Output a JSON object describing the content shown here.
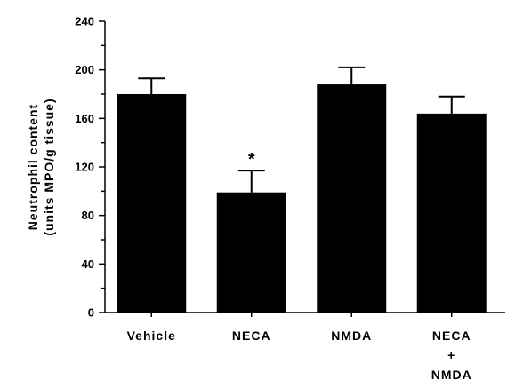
{
  "chart_data": {
    "type": "bar",
    "categories": [
      [
        "Vehicle"
      ],
      [
        "NECA"
      ],
      [
        "NMDA"
      ],
      [
        "NECA",
        "+",
        "NMDA"
      ]
    ],
    "values": [
      180,
      99,
      188,
      164
    ],
    "errors": [
      13,
      18,
      14,
      14
    ],
    "annotations": [
      "",
      "*",
      "",
      ""
    ],
    "ylabel": [
      "Neutrophil  content",
      "(units  MPO/g  tissue)"
    ],
    "ylim": [
      0,
      240
    ],
    "yticks": [
      0,
      40,
      80,
      120,
      160,
      200,
      240
    ],
    "bar_color": "#000000",
    "grid": false
  }
}
